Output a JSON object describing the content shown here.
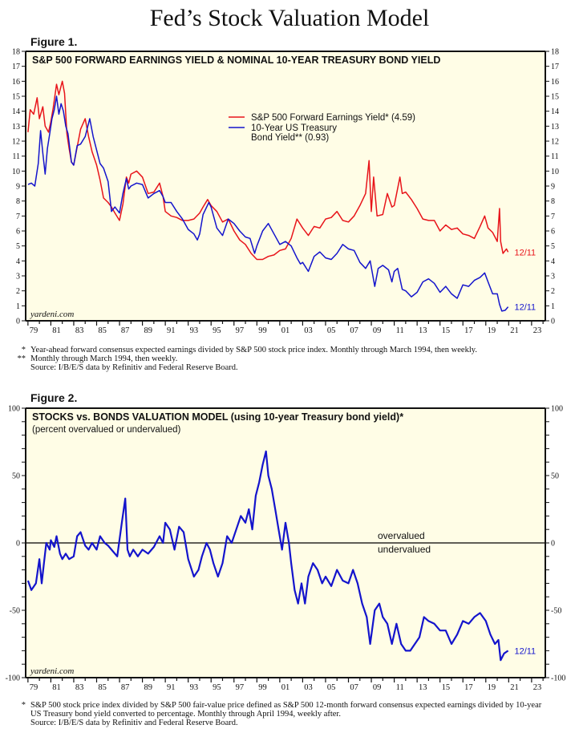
{
  "page": {
    "title": "Fed’s Stock Valuation Model"
  },
  "figure1": {
    "label": "Figure 1.",
    "notes": [
      {
        "mark": "*",
        "text": "Year-ahead forward consensus expected earnings divided by S&P 500 stock price index. Monthly through March 1994, then weekly."
      },
      {
        "mark": "**",
        "text": "Monthly through March 1994, then weekly."
      },
      {
        "mark": "",
        "text": "Source: I/B/E/S data by Refinitiv and Federal Reserve Board."
      }
    ]
  },
  "figure2": {
    "label": "Figure 2.",
    "notes": [
      {
        "mark": "*",
        "text": "S&P 500 stock price index divided by S&P 500 fair-value price defined as S&P 500 12-month forward consensus expected earnings divided by 10-year"
      },
      {
        "mark": "",
        "text": "US Treasury bond yield converted to percentage. Monthly through April 1994, weekly after."
      },
      {
        "mark": "",
        "text": "Source: I/B/E/S data by Refinitiv and Federal Reserve Board."
      }
    ]
  },
  "colors": {
    "plot_bg": "#fffde6",
    "red": "#e8141a",
    "blue": "#1414cc",
    "axis": "#111111"
  },
  "chart_data": [
    {
      "type": "line",
      "title": "S&P 500 FORWARD EARNINGS YIELD & NOMINAL 10-YEAR TREASURY BOND YIELD",
      "xlabel": "",
      "ylabel": "",
      "xlim": [
        1978.8,
        2024.2
      ],
      "ylim": [
        0,
        18
      ],
      "yticks": [
        0,
        1,
        2,
        3,
        4,
        5,
        6,
        7,
        8,
        9,
        10,
        11,
        12,
        13,
        14,
        15,
        16,
        17,
        18
      ],
      "xtick_labels": [
        "79",
        "81",
        "83",
        "85",
        "87",
        "89",
        "91",
        "93",
        "95",
        "97",
        "99",
        "01",
        "03",
        "05",
        "07",
        "09",
        "11",
        "13",
        "15",
        "17",
        "19",
        "21",
        "23"
      ],
      "xtick_years": [
        1979,
        1981,
        1983,
        1985,
        1987,
        1989,
        1991,
        1993,
        1995,
        1997,
        1999,
        2001,
        2003,
        2005,
        2007,
        2009,
        2011,
        2013,
        2015,
        2017,
        2019,
        2021,
        2023
      ],
      "watermark": "yardeni.com",
      "legend": [
        {
          "label": "S&P 500 Forward Earnings Yield* (4.59)",
          "color": "#e8141a"
        },
        {
          "label": "10-Year US Treasury",
          "label2": "Bond Yield** (0.93)",
          "color": "#1414cc"
        }
      ],
      "legend_position": "top-center",
      "end_labels": [
        {
          "text": "12/11",
          "series": "S&P 500 Forward Earnings Yield",
          "value": 4.59,
          "color": "#e8141a"
        },
        {
          "text": "12/11",
          "series": "10-Year US Treasury Bond Yield",
          "value": 0.93,
          "color": "#1414cc"
        }
      ],
      "series": [
        {
          "name": "S&P 500 Forward Earnings Yield",
          "color": "#e8141a",
          "x": [
            1979.0,
            1979.2,
            1979.5,
            1979.8,
            1980.0,
            1980.3,
            1980.5,
            1980.8,
            1981.0,
            1981.2,
            1981.5,
            1981.7,
            1982.0,
            1982.2,
            1982.4,
            1982.6,
            1982.8,
            1983.0,
            1983.3,
            1983.6,
            1984.0,
            1984.3,
            1984.6,
            1985.0,
            1985.3,
            1985.6,
            1986.0,
            1986.3,
            1986.6,
            1987.0,
            1987.3,
            1987.6,
            1987.8,
            1988.0,
            1988.5,
            1989.0,
            1989.5,
            1990.0,
            1990.5,
            1990.8,
            1991.0,
            1991.5,
            1992.0,
            1992.5,
            1993.0,
            1993.5,
            1994.0,
            1994.3,
            1994.7,
            1995.0,
            1995.5,
            1996.0,
            1996.5,
            1997.0,
            1997.5,
            1998.0,
            1998.5,
            1999.0,
            1999.5,
            2000.0,
            2000.5,
            2001.0,
            2001.5,
            2002.0,
            2002.5,
            2003.0,
            2003.5,
            2004.0,
            2004.5,
            2005.0,
            2005.5,
            2006.0,
            2006.5,
            2007.0,
            2007.5,
            2008.0,
            2008.5,
            2008.8,
            2009.0,
            2009.2,
            2009.5,
            2010.0,
            2010.4,
            2010.8,
            2011.0,
            2011.5,
            2011.7,
            2012.0,
            2012.5,
            2013.0,
            2013.5,
            2014.0,
            2014.5,
            2015.0,
            2015.5,
            2016.0,
            2016.5,
            2017.0,
            2017.5,
            2018.0,
            2018.5,
            2018.9,
            2019.2,
            2019.6,
            2020.0,
            2020.2,
            2020.3,
            2020.5,
            2020.8,
            2020.95
          ],
          "y": [
            12.6,
            14.1,
            13.8,
            14.9,
            13.5,
            14.3,
            13.0,
            12.6,
            13.3,
            14.2,
            15.8,
            15.1,
            16.0,
            15.2,
            12.5,
            11.5,
            10.6,
            10.4,
            11.6,
            12.8,
            13.5,
            12.3,
            11.3,
            10.4,
            9.4,
            8.2,
            7.9,
            7.6,
            7.2,
            6.7,
            7.8,
            9.6,
            9.2,
            9.8,
            10.0,
            9.6,
            8.5,
            8.6,
            9.2,
            8.3,
            7.3,
            7.0,
            6.9,
            6.7,
            6.7,
            6.8,
            7.2,
            7.6,
            8.1,
            7.7,
            7.3,
            6.6,
            6.8,
            6.0,
            5.4,
            5.1,
            4.5,
            4.1,
            4.1,
            4.3,
            4.4,
            4.7,
            4.8,
            5.5,
            6.8,
            6.2,
            5.7,
            6.3,
            6.2,
            6.8,
            6.9,
            7.3,
            6.7,
            6.6,
            7.0,
            7.7,
            8.5,
            10.7,
            7.3,
            9.6,
            7.0,
            7.1,
            8.5,
            7.6,
            7.7,
            9.6,
            8.5,
            8.6,
            8.1,
            7.5,
            6.8,
            6.7,
            6.7,
            6.0,
            6.4,
            6.1,
            6.2,
            5.8,
            5.7,
            5.5,
            6.3,
            7.0,
            6.2,
            5.9,
            5.3,
            7.5,
            5.3,
            4.5,
            4.8,
            4.59
          ]
        },
        {
          "name": "10-Year US Treasury Bond Yield",
          "color": "#1414cc",
          "x": [
            1979.0,
            1979.3,
            1979.6,
            1979.9,
            1980.1,
            1980.3,
            1980.5,
            1980.7,
            1980.9,
            1981.1,
            1981.3,
            1981.5,
            1981.7,
            1981.9,
            1982.1,
            1982.3,
            1982.5,
            1982.8,
            1983.0,
            1983.3,
            1983.6,
            1984.0,
            1984.4,
            1984.7,
            1985.0,
            1985.3,
            1985.6,
            1986.0,
            1986.3,
            1986.6,
            1987.0,
            1987.3,
            1987.6,
            1987.8,
            1988.0,
            1988.5,
            1989.0,
            1989.5,
            1990.0,
            1990.5,
            1990.8,
            1991.0,
            1991.5,
            1992.0,
            1992.5,
            1993.0,
            1993.5,
            1993.8,
            1994.0,
            1994.3,
            1994.8,
            1995.0,
            1995.5,
            1996.0,
            1996.5,
            1997.0,
            1997.5,
            1998.0,
            1998.4,
            1998.8,
            1999.0,
            1999.5,
            2000.0,
            2000.5,
            2001.0,
            2001.5,
            2002.0,
            2002.5,
            2002.8,
            2003.0,
            2003.5,
            2004.0,
            2004.5,
            2005.0,
            2005.5,
            2006.0,
            2006.5,
            2007.0,
            2007.5,
            2008.0,
            2008.5,
            2008.9,
            2009.3,
            2009.6,
            2010.0,
            2010.5,
            2010.8,
            2011.0,
            2011.3,
            2011.7,
            2012.0,
            2012.5,
            2013.0,
            2013.5,
            2014.0,
            2014.5,
            2015.0,
            2015.5,
            2016.0,
            2016.5,
            2017.0,
            2017.5,
            2018.0,
            2018.5,
            2018.9,
            2019.2,
            2019.6,
            2020.0,
            2020.2,
            2020.4,
            2020.7,
            2020.95
          ],
          "y": [
            9.1,
            9.2,
            9.0,
            10.5,
            12.7,
            11.2,
            9.8,
            11.5,
            12.5,
            13.5,
            14.1,
            15.0,
            13.8,
            14.5,
            14.0,
            13.0,
            12.5,
            10.6,
            10.4,
            11.7,
            11.8,
            12.3,
            13.5,
            12.3,
            11.4,
            10.5,
            10.2,
            9.3,
            7.3,
            7.6,
            7.2,
            8.5,
            9.5,
            8.8,
            9.0,
            9.2,
            9.1,
            8.2,
            8.5,
            8.7,
            8.3,
            7.9,
            7.9,
            7.3,
            6.8,
            6.1,
            5.8,
            5.4,
            5.8,
            7.1,
            7.9,
            7.6,
            6.2,
            5.7,
            6.8,
            6.5,
            6.0,
            5.6,
            5.5,
            4.5,
            5.0,
            6.0,
            6.5,
            5.8,
            5.1,
            5.3,
            5.0,
            4.2,
            3.8,
            3.9,
            3.3,
            4.3,
            4.6,
            4.2,
            4.1,
            4.5,
            5.1,
            4.8,
            4.7,
            3.9,
            3.5,
            4.0,
            2.3,
            3.5,
            3.7,
            3.4,
            2.6,
            3.3,
            3.5,
            2.1,
            2.0,
            1.6,
            1.9,
            2.6,
            2.8,
            2.5,
            1.9,
            2.3,
            1.8,
            1.5,
            2.4,
            2.3,
            2.7,
            2.9,
            3.2,
            2.6,
            1.8,
            1.8,
            1.1,
            0.65,
            0.7,
            0.93
          ]
        }
      ]
    },
    {
      "type": "line",
      "title": "STOCKS vs. BONDS VALUATION MODEL (using 10-year Treasury bond yield)*",
      "subtitle": "(percent overvalued or undervalued)",
      "xlabel": "",
      "ylabel": "",
      "xlim": [
        1978.8,
        2024.2
      ],
      "ylim": [
        -100,
        100
      ],
      "yticks": [
        -100,
        -50,
        0,
        50,
        100
      ],
      "xtick_labels": [
        "79",
        "81",
        "83",
        "85",
        "87",
        "89",
        "91",
        "93",
        "95",
        "97",
        "99",
        "01",
        "03",
        "05",
        "07",
        "09",
        "11",
        "13",
        "15",
        "17",
        "19",
        "21",
        "23"
      ],
      "xtick_years": [
        1979,
        1981,
        1983,
        1985,
        1987,
        1989,
        1991,
        1993,
        1995,
        1997,
        1999,
        2001,
        2003,
        2005,
        2007,
        2009,
        2011,
        2013,
        2015,
        2017,
        2019,
        2021,
        2023
      ],
      "watermark": "yardeni.com",
      "annotations": [
        {
          "text": "overvalued",
          "position": "above-zero-line"
        },
        {
          "text": "undervalued",
          "position": "below-zero-line"
        }
      ],
      "reference_line": 0,
      "end_labels": [
        {
          "text": "12/11",
          "color": "#1414cc",
          "value": -80
        }
      ],
      "series": [
        {
          "name": "Stocks vs. Bonds Valuation",
          "color": "#1414cc",
          "x": [
            1979.0,
            1979.3,
            1979.7,
            1980.0,
            1980.2,
            1980.4,
            1980.6,
            1980.9,
            1981.0,
            1981.3,
            1981.5,
            1981.8,
            1982.0,
            1982.3,
            1982.6,
            1983.0,
            1983.3,
            1983.6,
            1984.0,
            1984.3,
            1984.6,
            1985.0,
            1985.3,
            1985.7,
            1986.0,
            1986.4,
            1986.8,
            1987.2,
            1987.5,
            1987.7,
            1987.9,
            1988.2,
            1988.6,
            1989.0,
            1989.5,
            1990.0,
            1990.5,
            1990.8,
            1991.0,
            1991.4,
            1991.8,
            1992.2,
            1992.6,
            1993.0,
            1993.5,
            1993.9,
            1994.2,
            1994.6,
            1994.9,
            1995.2,
            1995.6,
            1996.0,
            1996.4,
            1996.8,
            1997.2,
            1997.6,
            1998.0,
            1998.3,
            1998.6,
            1998.9,
            1999.2,
            1999.5,
            1999.8,
            2000.0,
            2000.3,
            2000.6,
            2000.9,
            2001.2,
            2001.5,
            2001.8,
            2002.0,
            2002.3,
            2002.6,
            2002.9,
            2003.2,
            2003.5,
            2003.9,
            2004.3,
            2004.7,
            2005.0,
            2005.5,
            2006.0,
            2006.5,
            2007.0,
            2007.4,
            2007.8,
            2008.2,
            2008.6,
            2008.9,
            2009.3,
            2009.7,
            2010.0,
            2010.4,
            2010.8,
            2011.2,
            2011.6,
            2012.0,
            2012.4,
            2012.8,
            2013.2,
            2013.6,
            2014.0,
            2014.5,
            2015.0,
            2015.5,
            2016.0,
            2016.5,
            2017.0,
            2017.5,
            2018.0,
            2018.5,
            2019.0,
            2019.4,
            2019.8,
            2020.1,
            2020.3,
            2020.6,
            2020.95
          ],
          "y": [
            -28,
            -35,
            -30,
            -12,
            -30,
            -15,
            0,
            -5,
            2,
            -3,
            5,
            -8,
            -12,
            -8,
            -12,
            -10,
            5,
            8,
            -2,
            -5,
            0,
            -5,
            5,
            0,
            -2,
            -6,
            -10,
            15,
            33,
            -5,
            -10,
            -5,
            -10,
            -5,
            -8,
            -3,
            5,
            0,
            15,
            10,
            -5,
            12,
            8,
            -12,
            -25,
            -20,
            -10,
            0,
            -5,
            -15,
            -25,
            -15,
            5,
            0,
            10,
            20,
            15,
            25,
            10,
            35,
            45,
            58,
            68,
            50,
            40,
            25,
            10,
            -5,
            15,
            0,
            -15,
            -35,
            -45,
            -30,
            -45,
            -25,
            -15,
            -20,
            -30,
            -25,
            -32,
            -20,
            -28,
            -30,
            -20,
            -30,
            -45,
            -55,
            -75,
            -50,
            -45,
            -55,
            -60,
            -75,
            -60,
            -75,
            -80,
            -80,
            -75,
            -70,
            -55,
            -58,
            -60,
            -65,
            -65,
            -75,
            -68,
            -58,
            -60,
            -55,
            -52,
            -58,
            -68,
            -75,
            -72,
            -87,
            -82,
            -80
          ]
        }
      ]
    }
  ]
}
